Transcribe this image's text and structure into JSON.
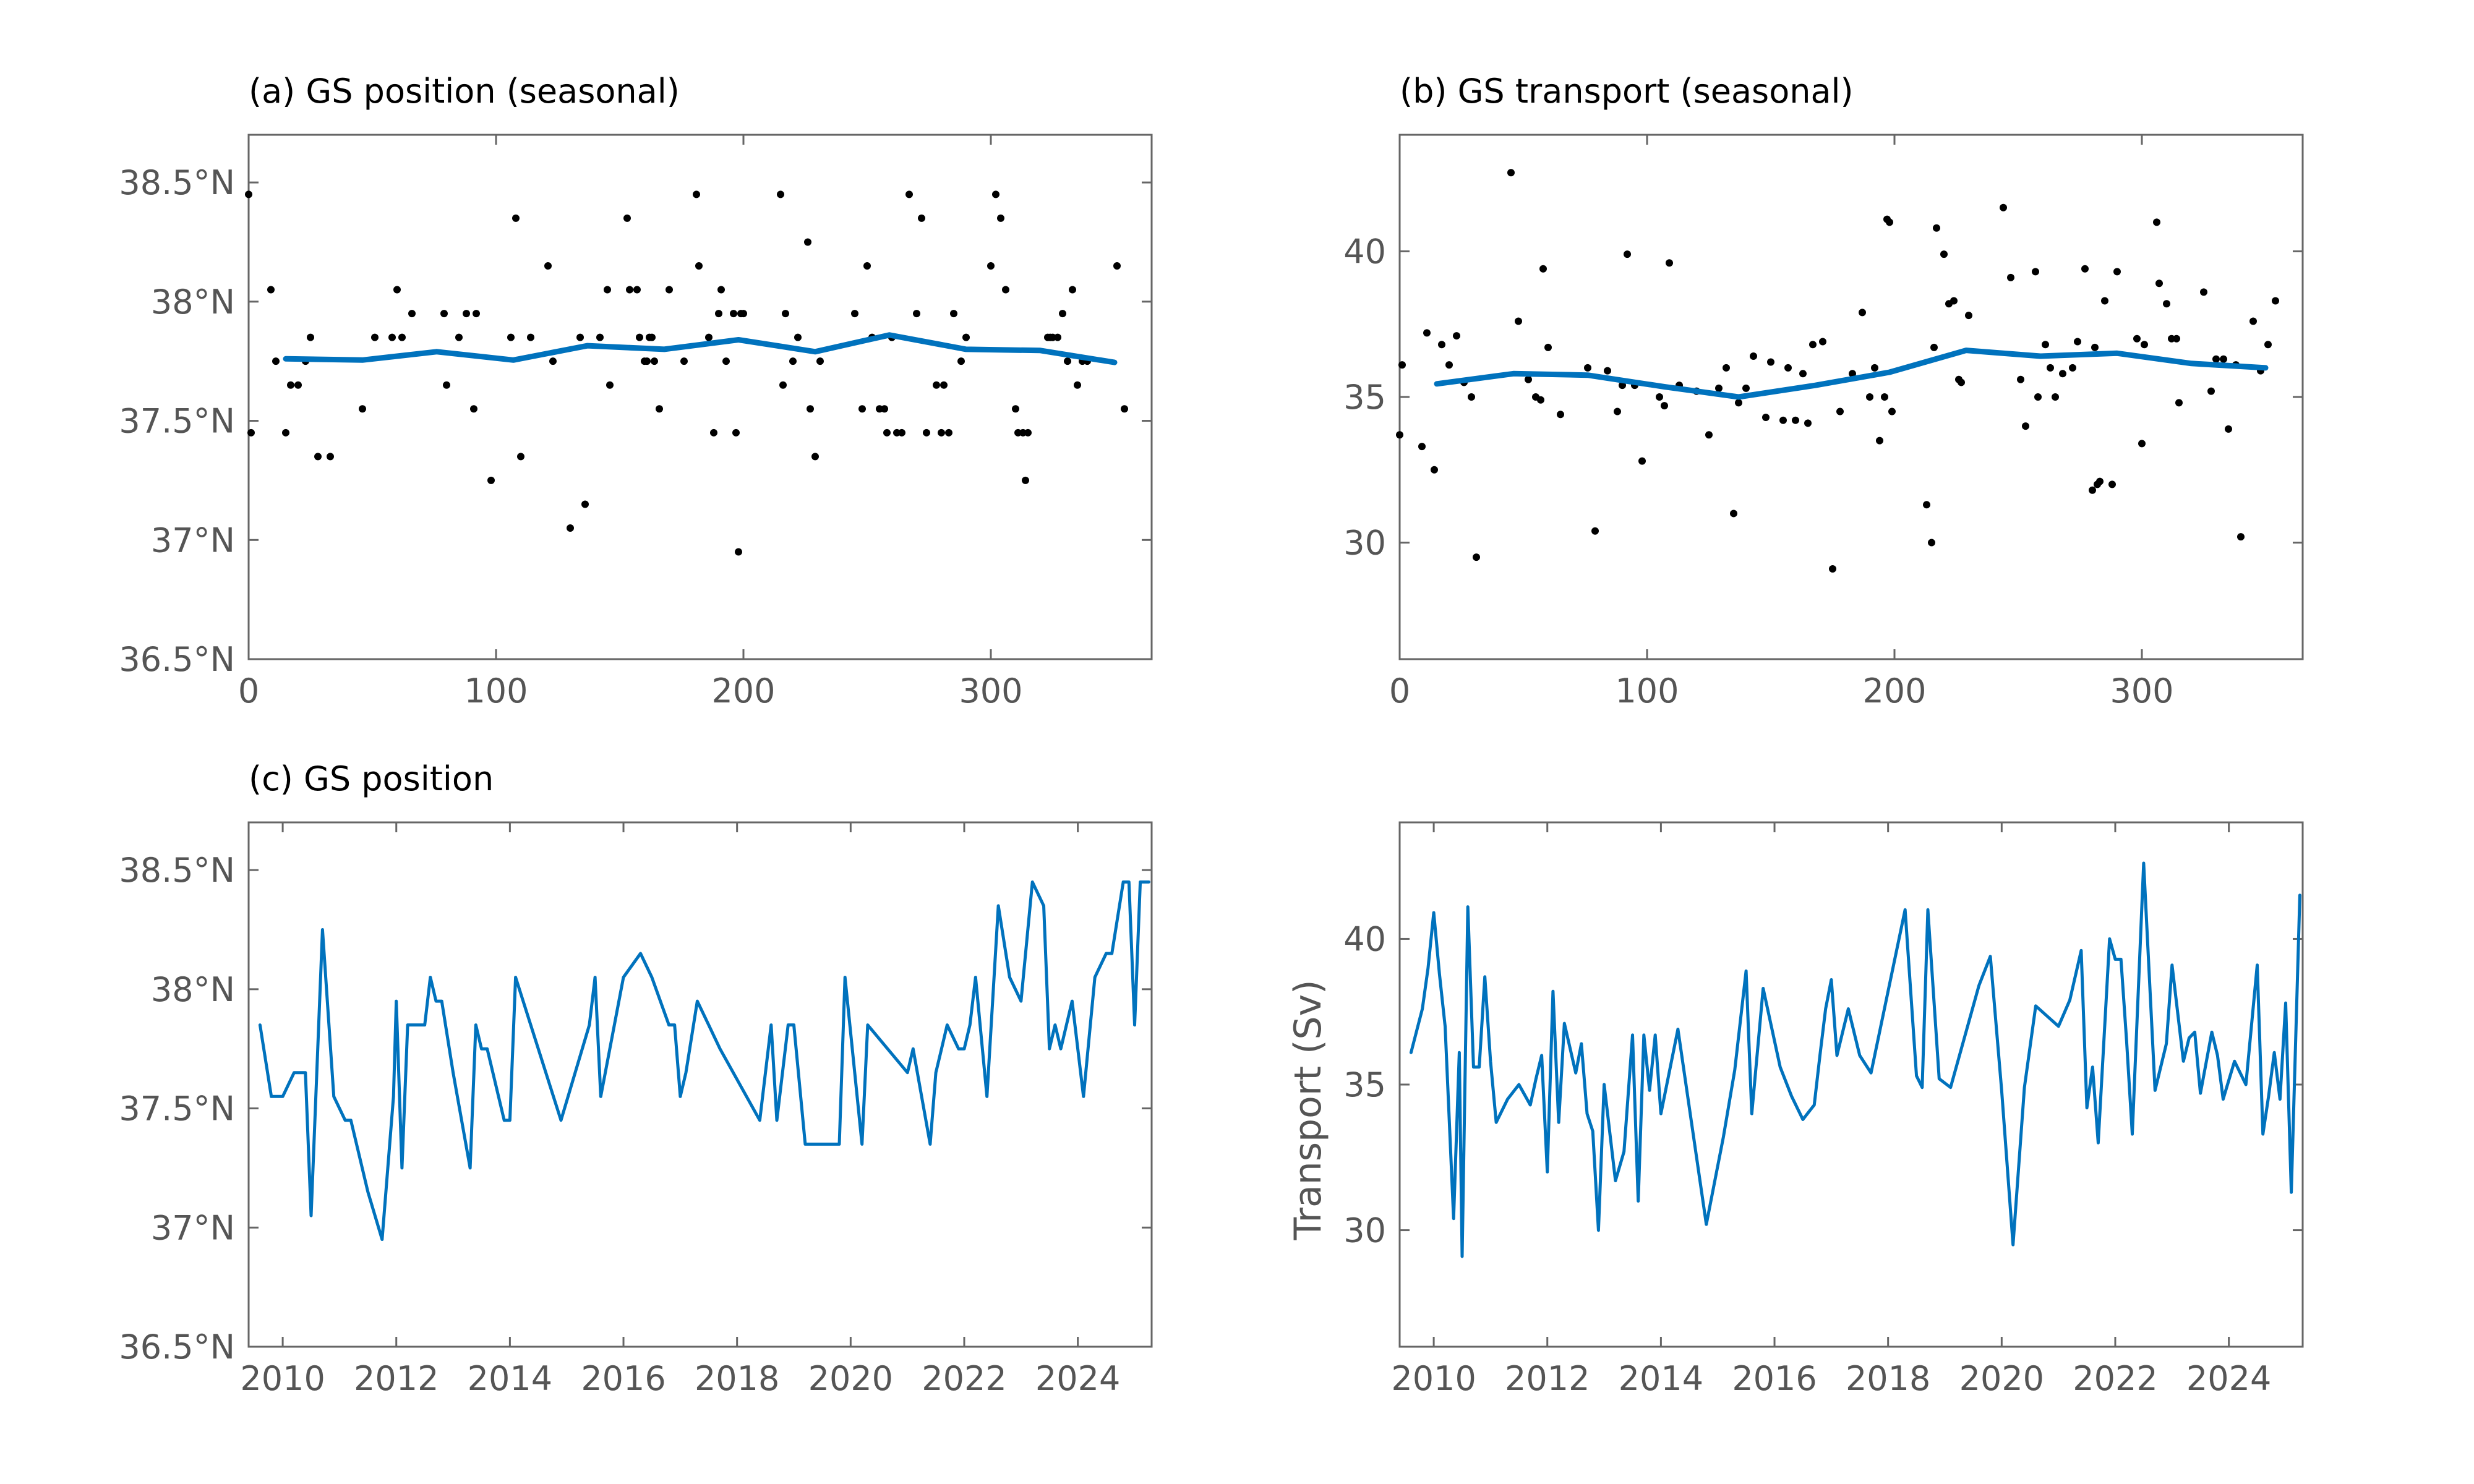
{
  "figure": {
    "background": "#ffffff",
    "axis_color": "#666666",
    "line_color": "#0072BD",
    "dot_color": "#000000"
  },
  "chart_data": [
    {
      "id": "a",
      "type": "scatter",
      "title": "(a) GS position (seasonal)",
      "xlabel": "",
      "ylabel": "",
      "xlim": [
        0,
        365
      ],
      "ylim": [
        36.5,
        38.7
      ],
      "xticks": [
        0,
        100,
        200,
        300
      ],
      "xtick_labels": [
        "0",
        "100",
        "200",
        "300"
      ],
      "yticks": [
        36.5,
        37,
        37.5,
        38,
        38.5
      ],
      "ytick_labels": [
        "36.5°N",
        "37°N",
        "37.5°N",
        "38°N",
        "38.5°N"
      ],
      "grid": false,
      "series": [
        {
          "kind": "scatter",
          "x": [
            0,
            1,
            9,
            11,
            15,
            17,
            20,
            23,
            25,
            28,
            33,
            46,
            51,
            58,
            60,
            62,
            66,
            79,
            80,
            85,
            88,
            91,
            92,
            98,
            106,
            108,
            110,
            114,
            121,
            123,
            130,
            134,
            136,
            142,
            145,
            146,
            153,
            154,
            157,
            158,
            160,
            161,
            162,
            163,
            164,
            166,
            170,
            176,
            181,
            182,
            186,
            188,
            190,
            191,
            193,
            196,
            197,
            198,
            199,
            200,
            215,
            216,
            217,
            220,
            222,
            226,
            227,
            229,
            231,
            245,
            248,
            250,
            252,
            255,
            257,
            258,
            260,
            262,
            264,
            267,
            270,
            272,
            274,
            278,
            280,
            281,
            283,
            285,
            288,
            290,
            300,
            302,
            304,
            306,
            310,
            311,
            313,
            314,
            315,
            323,
            324,
            325,
            327,
            329,
            331,
            333,
            335,
            337,
            339,
            351,
            354
          ],
          "y": [
            38.45,
            37.45,
            38.05,
            37.75,
            37.45,
            37.65,
            37.65,
            37.75,
            37.85,
            37.35,
            37.35,
            37.55,
            37.85,
            37.85,
            38.05,
            37.85,
            37.95,
            37.95,
            37.65,
            37.85,
            37.95,
            37.55,
            37.95,
            37.25,
            37.85,
            38.35,
            37.35,
            37.85,
            38.15,
            37.75,
            37.05,
            37.85,
            37.15,
            37.85,
            38.05,
            37.65,
            38.35,
            38.05,
            38.05,
            37.85,
            37.75,
            37.75,
            37.85,
            37.85,
            37.75,
            37.55,
            38.05,
            37.75,
            38.45,
            38.15,
            37.85,
            37.45,
            37.95,
            38.05,
            37.75,
            37.95,
            37.45,
            36.95,
            37.95,
            37.95,
            38.45,
            37.65,
            37.95,
            37.75,
            37.85,
            38.25,
            37.55,
            37.35,
            37.75,
            37.95,
            37.55,
            38.15,
            37.85,
            37.55,
            37.55,
            37.45,
            37.85,
            37.45,
            37.45,
            38.45,
            37.95,
            38.35,
            37.45,
            37.65,
            37.45,
            37.65,
            37.45,
            37.95,
            37.75,
            37.85,
            38.15,
            38.45,
            38.35,
            38.05,
            37.55,
            37.45,
            37.45,
            37.25,
            37.45,
            37.85,
            37.85,
            37.85,
            37.85,
            37.95,
            37.75,
            38.05,
            37.65,
            37.75,
            37.75,
            38.15,
            37.55
          ]
        },
        {
          "kind": "line",
          "x": [
            15,
            46,
            76,
            107,
            137,
            168,
            198,
            229,
            259,
            290,
            320,
            350
          ],
          "y": [
            37.76,
            37.755,
            37.79,
            37.755,
            37.815,
            37.8,
            37.84,
            37.79,
            37.86,
            37.8,
            37.795,
            37.745
          ]
        }
      ]
    },
    {
      "id": "b",
      "type": "scatter",
      "title": "(b) GS transport (seasonal)",
      "xlabel": "",
      "ylabel": "",
      "xlim": [
        0,
        365
      ],
      "ylim": [
        26,
        44
      ],
      "xticks": [
        0,
        100,
        200,
        300
      ],
      "xtick_labels": [
        "0",
        "100",
        "200",
        "300"
      ],
      "yticks": [
        30,
        35,
        40
      ],
      "ytick_labels": [
        "30",
        "35",
        "40"
      ],
      "grid": false,
      "series": [
        {
          "kind": "scatter",
          "x": [
            0,
            1,
            9,
            11,
            14,
            17,
            20,
            23,
            26,
            29,
            31,
            45,
            48,
            52,
            55,
            57,
            58,
            60,
            65,
            76,
            79,
            84,
            88,
            90,
            92,
            95,
            98,
            105,
            107,
            109,
            113,
            120,
            125,
            129,
            132,
            135,
            137,
            140,
            143,
            148,
            150,
            155,
            157,
            160,
            163,
            165,
            167,
            171,
            175,
            178,
            183,
            187,
            190,
            192,
            194,
            196,
            197,
            198,
            199,
            213,
            215,
            216,
            217,
            220,
            222,
            224,
            226,
            227,
            230,
            244,
            247,
            251,
            253,
            257,
            258,
            261,
            263,
            265,
            268,
            272,
            274,
            277,
            280,
            281,
            282,
            283,
            285,
            288,
            290,
            298,
            300,
            301,
            306,
            307,
            310,
            312,
            314,
            315,
            325,
            328,
            330,
            333,
            335,
            338,
            340,
            345,
            348,
            351,
            354
          ],
          "y": [
            33.7,
            36.1,
            33.3,
            37.2,
            32.5,
            36.8,
            36.1,
            37.1,
            35.5,
            35.0,
            29.5,
            42.7,
            37.6,
            35.6,
            35.0,
            34.9,
            39.4,
            36.7,
            34.4,
            36.0,
            30.4,
            35.9,
            34.5,
            35.4,
            39.9,
            35.4,
            32.8,
            35.0,
            34.7,
            39.6,
            35.4,
            35.2,
            33.7,
            35.3,
            36.0,
            31.0,
            34.8,
            35.3,
            36.4,
            34.3,
            36.2,
            34.2,
            36.0,
            34.2,
            35.8,
            34.1,
            36.8,
            36.9,
            29.1,
            34.5,
            35.8,
            37.9,
            35.0,
            36.0,
            33.5,
            35.0,
            41.1,
            41.0,
            34.5,
            31.3,
            30.0,
            36.7,
            40.8,
            39.9,
            38.2,
            38.3,
            35.6,
            35.5,
            37.8,
            41.5,
            39.1,
            35.6,
            34.0,
            39.3,
            35.0,
            36.8,
            36.0,
            35.0,
            35.8,
            36.0,
            36.9,
            39.4,
            31.8,
            36.7,
            32.0,
            32.1,
            38.3,
            32.0,
            39.3,
            37.0,
            33.4,
            36.8,
            41.0,
            38.9,
            38.2,
            37.0,
            37.0,
            34.8,
            38.6,
            35.2,
            36.3,
            36.3,
            33.9,
            36.1,
            30.2,
            37.6,
            35.9,
            36.8,
            38.3
          ]
        },
        {
          "kind": "line",
          "x": [
            15,
            46,
            76,
            107,
            137,
            168,
            198,
            229,
            259,
            290,
            320,
            350
          ],
          "y": [
            35.45,
            35.8,
            35.75,
            35.35,
            35.0,
            35.4,
            35.85,
            36.6,
            36.4,
            36.5,
            36.15,
            36.0
          ]
        }
      ]
    },
    {
      "id": "c",
      "type": "line",
      "title": "(c) GS position",
      "xlabel": "",
      "ylabel": "",
      "xlim": [
        2009.4,
        2025.3
      ],
      "ylim": [
        36.5,
        38.7
      ],
      "xticks": [
        2010,
        2012,
        2014,
        2016,
        2018,
        2020,
        2022,
        2024
      ],
      "xtick_labels": [
        "2010",
        "2012",
        "2014",
        "2016",
        "2018",
        "2020",
        "2022",
        "2024"
      ],
      "yticks": [
        36.5,
        37,
        37.5,
        38,
        38.5
      ],
      "ytick_labels": [
        "36.5°N",
        "37°N",
        "37.5°N",
        "38°N",
        "38.5°N"
      ],
      "grid": false,
      "series": [
        {
          "kind": "line",
          "x": [
            2009.6,
            2009.8,
            2010.0,
            2010.2,
            2010.4,
            2010.5,
            2010.7,
            2010.9,
            2011.1,
            2011.2,
            2011.5,
            2011.75,
            2011.95,
            2012.0,
            2012.1,
            2012.2,
            2012.5,
            2012.6,
            2012.7,
            2012.8,
            2013.0,
            2013.3,
            2013.4,
            2013.5,
            2013.6,
            2013.9,
            2014.0,
            2014.1,
            2014.9,
            2015.4,
            2015.5,
            2015.6,
            2016.0,
            2016.3,
            2016.5,
            2016.8,
            2016.9,
            2017.0,
            2017.1,
            2017.3,
            2017.5,
            2017.7,
            2018.4,
            2018.6,
            2018.7,
            2018.9,
            2019.0,
            2019.2,
            2019.5,
            2019.8,
            2019.9,
            2020.2,
            2020.3,
            2021.0,
            2021.1,
            2021.4,
            2021.5,
            2021.6,
            2021.7,
            2021.9,
            2022.0,
            2022.1,
            2022.2,
            2022.4,
            2022.6,
            2022.8,
            2023.0,
            2023.2,
            2023.4,
            2023.5,
            2023.6,
            2023.7,
            2023.9,
            2024.1,
            2024.3,
            2024.5,
            2024.6,
            2024.8,
            2024.9,
            2025.0,
            2025.1,
            2025.25
          ],
          "y": [
            37.85,
            37.55,
            37.55,
            37.65,
            37.65,
            37.05,
            38.25,
            37.55,
            37.45,
            37.45,
            37.15,
            36.95,
            37.55,
            37.95,
            37.25,
            37.85,
            37.85,
            38.05,
            37.95,
            37.95,
            37.65,
            37.25,
            37.85,
            37.75,
            37.75,
            37.45,
            37.45,
            38.05,
            37.45,
            37.85,
            38.05,
            37.55,
            38.05,
            38.15,
            38.05,
            37.85,
            37.85,
            37.55,
            37.65,
            37.95,
            37.85,
            37.75,
            37.45,
            37.85,
            37.45,
            37.85,
            37.85,
            37.35,
            37.35,
            37.35,
            38.05,
            37.35,
            37.85,
            37.65,
            37.75,
            37.35,
            37.65,
            37.75,
            37.85,
            37.75,
            37.75,
            37.85,
            38.05,
            37.55,
            38.35,
            38.05,
            37.95,
            38.45,
            38.35,
            37.75,
            37.85,
            37.75,
            37.95,
            37.55,
            38.05,
            38.15,
            38.15,
            38.45,
            38.45,
            37.85,
            38.45,
            38.45
          ]
        }
      ]
    },
    {
      "id": "d",
      "type": "line",
      "title": "",
      "xlabel": "",
      "ylabel": "Transport (Sv)",
      "xlim": [
        2009.4,
        2025.3
      ],
      "ylim": [
        26,
        44
      ],
      "xticks": [
        2010,
        2012,
        2014,
        2016,
        2018,
        2020,
        2022,
        2024
      ],
      "xtick_labels": [
        "2010",
        "2012",
        "2014",
        "2016",
        "2018",
        "2020",
        "2022",
        "2024"
      ],
      "yticks": [
        30,
        35,
        40
      ],
      "ytick_labels": [
        "30",
        "35",
        "40"
      ],
      "grid": false,
      "series": [
        {
          "kind": "line",
          "x": [
            2009.6,
            2009.8,
            2009.9,
            2010.0,
            2010.1,
            2010.2,
            2010.35,
            2010.45,
            2010.5,
            2010.6,
            2010.7,
            2010.8,
            2010.9,
            2011.0,
            2011.1,
            2011.3,
            2011.5,
            2011.7,
            2011.8,
            2011.9,
            2012.0,
            2012.1,
            2012.2,
            2012.3,
            2012.5,
            2012.6,
            2012.7,
            2012.8,
            2012.9,
            2013.0,
            2013.2,
            2013.35,
            2013.5,
            2013.6,
            2013.7,
            2013.8,
            2013.9,
            2014.0,
            2014.3,
            2014.8,
            2015.1,
            2015.3,
            2015.5,
            2015.6,
            2015.8,
            2016.1,
            2016.3,
            2016.5,
            2016.7,
            2016.8,
            2016.9,
            2017.0,
            2017.1,
            2017.3,
            2017.5,
            2017.7,
            2018.3,
            2018.5,
            2018.6,
            2018.7,
            2018.9,
            2019.1,
            2019.6,
            2019.8,
            2020.0,
            2020.2,
            2020.4,
            2020.6,
            2021.0,
            2021.2,
            2021.4,
            2021.5,
            2021.6,
            2021.7,
            2021.9,
            2022.0,
            2022.1,
            2022.2,
            2022.3,
            2022.5,
            2022.7,
            2022.9,
            2023.0,
            2023.2,
            2023.3,
            2023.4,
            2023.5,
            2023.7,
            2023.8,
            2023.9,
            2024.1,
            2024.3,
            2024.5,
            2024.6,
            2024.7,
            2024.8,
            2024.9,
            2025.0,
            2025.1,
            2025.25
          ],
          "y": [
            36.1,
            37.6,
            39.0,
            40.9,
            38.8,
            37.0,
            30.4,
            36.1,
            29.1,
            41.1,
            35.6,
            35.6,
            38.7,
            35.8,
            33.7,
            34.5,
            35.0,
            34.3,
            35.2,
            36.0,
            32.0,
            38.2,
            33.7,
            37.1,
            35.4,
            36.4,
            34.0,
            33.4,
            30.0,
            35.0,
            31.7,
            32.7,
            36.7,
            31.0,
            36.7,
            34.8,
            36.7,
            34.0,
            36.9,
            30.2,
            33.2,
            35.5,
            38.9,
            34.0,
            38.3,
            35.6,
            34.6,
            33.8,
            34.3,
            36.0,
            37.6,
            38.6,
            36.0,
            37.6,
            36.0,
            35.4,
            41.0,
            35.3,
            34.9,
            41.0,
            35.2,
            34.9,
            38.4,
            39.4,
            34.8,
            29.5,
            34.9,
            37.7,
            37.0,
            37.9,
            39.6,
            34.2,
            35.6,
            33.0,
            40.0,
            39.3,
            39.3,
            36.5,
            33.3,
            42.6,
            34.8,
            36.4,
            39.1,
            35.8,
            36.6,
            36.8,
            34.7,
            36.8,
            36.0,
            34.5,
            35.8,
            35.0,
            39.1,
            33.3,
            34.6,
            36.1,
            34.5,
            37.8,
            31.3,
            41.5
          ]
        }
      ]
    }
  ]
}
